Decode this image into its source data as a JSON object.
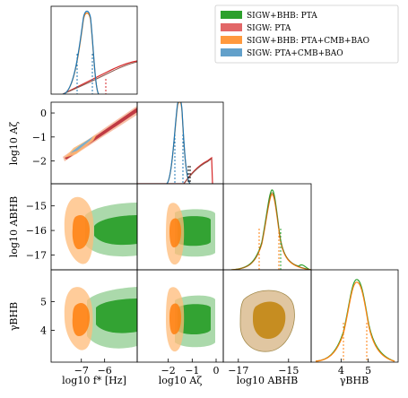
{
  "chart_data": {
    "type": "corner",
    "parameters": [
      {
        "label": "log10 f* [Hz]",
        "ticks": [
          -7,
          -6
        ],
        "tick_labels": [
          "−7",
          "−6"
        ],
        "range": [
          -8.3,
          -4.6
        ]
      },
      {
        "label": "log10 Aζ",
        "ticks": [
          -2,
          -1,
          0
        ],
        "tick_labels": [
          "−2",
          "−1",
          "0"
        ],
        "range": [
          -3.3,
          0.3
        ]
      },
      {
        "label": "log10 ABHB",
        "ticks": [
          -17,
          -15
        ],
        "tick_labels": [
          "−17",
          "−15"
        ],
        "range": [
          -17.6,
          -14.1
        ]
      },
      {
        "label": "γBHB",
        "ticks": [
          4,
          5
        ],
        "tick_labels": [
          "4",
          "5"
        ],
        "range": [
          2.9,
          6.1
        ]
      }
    ],
    "row_labels": [
      {
        "param": 1,
        "ticks": [
          -2,
          -1,
          0
        ],
        "tick_labels": [
          "−2",
          "−1",
          "0"
        ],
        "range": [
          -2.95,
          0.45
        ]
      },
      {
        "param": 2,
        "ticks": [
          -17,
          -16,
          -15
        ],
        "tick_labels": [
          "−17",
          "−16",
          "−15"
        ],
        "range": [
          -17.6,
          -14.1
        ]
      },
      {
        "param": 3,
        "ticks": [
          4,
          5
        ],
        "tick_labels": [
          "4",
          "5"
        ],
        "range": [
          2.9,
          6.1
        ]
      }
    ],
    "legend": {
      "placement": "upper-right"
    },
    "series": [
      {
        "name": "SIGW+BHB: PTA",
        "color": "#2ca02c"
      },
      {
        "name": "SIGW: PTA",
        "color": "#d62728"
      },
      {
        "name": "SIGW+BHB: PTA+CMB+BAO",
        "color": "#ff7f0e"
      },
      {
        "name": "SIGW: PTA+CMB+BAO",
        "color": "#1f77b4"
      }
    ],
    "marginals": {
      "log10_fstar": {
        "peak": -6.9,
        "SIGW_PTA_quantiles": [
          -6.2
        ],
        "PTA_CMB_BAO_quantiles": [
          -7.2,
          -6.5
        ]
      },
      "log10_Azeta": {
        "peak": -1.1,
        "SIGW_PTA_quantiles": [
          -0.9
        ],
        "PTA_CMB_BAO_quantiles": [
          -1.4,
          -0.9
        ]
      },
      "log10_ABHB": {
        "peak": -15.6,
        "quantiles": [
          -16.4,
          -15.0
        ]
      },
      "gamma_BHB": {
        "peak": 4.7,
        "quantiles": [
          4.2,
          5.0
        ]
      }
    }
  }
}
